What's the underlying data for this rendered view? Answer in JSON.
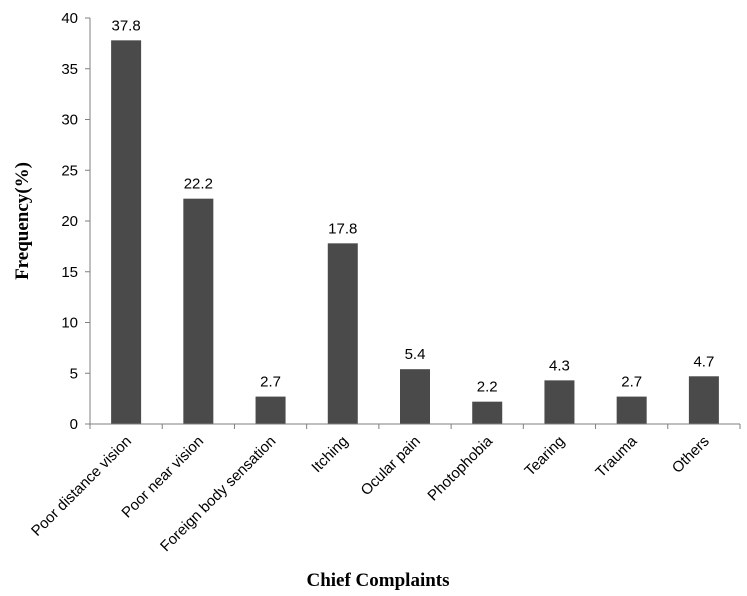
{
  "chart_data": {
    "type": "bar",
    "title": "",
    "xlabel": "Chief Complaints",
    "ylabel": "Frequency(%)",
    "ylim": [
      0,
      40
    ],
    "yticks": [
      0,
      5,
      10,
      15,
      20,
      25,
      30,
      35,
      40
    ],
    "grid": false,
    "legend": "none",
    "bar_color": "#4a4a4a",
    "categories": [
      "Poor distance vision",
      "Poor near vision",
      "Foreign body sensation",
      "Itching",
      "Ocular pain",
      "Photophobia",
      "Tearing",
      "Trauma",
      "Others"
    ],
    "values": [
      37.8,
      22.2,
      2.7,
      17.8,
      5.4,
      2.2,
      4.3,
      2.7,
      4.7
    ],
    "data_labels": [
      "37.8",
      "22.2",
      "2.7",
      "17.8",
      "5.4",
      "2.2",
      "4.3",
      "2.7",
      "4.7"
    ]
  }
}
